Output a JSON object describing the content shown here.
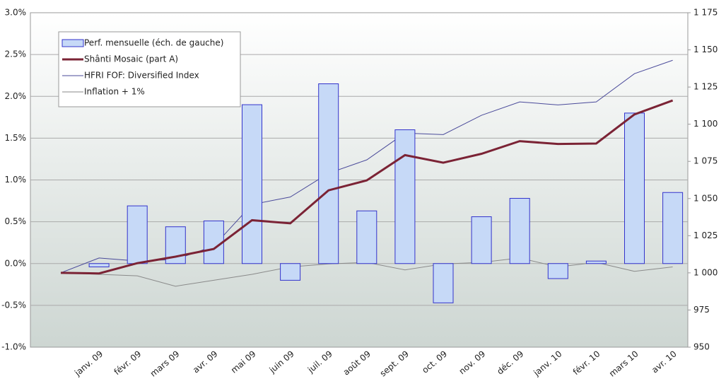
{
  "chart_data": {
    "type": "bar-line",
    "categories": [
      null,
      "janv. 09",
      "févr. 09",
      "mars 09",
      "avr. 09",
      "mai 09",
      "juin 09",
      "juil. 09",
      "août 09",
      "sept. 09",
      "oct. 09",
      "nov. 09",
      "déc. 09",
      "janv. 10",
      "févr. 10",
      "mars 10",
      "avr. 10"
    ],
    "series": [
      {
        "name": "Perf. mensuelle (éch. de gauche)",
        "type": "bar",
        "color": "#c6d9f7",
        "stroke": "#3333cc",
        "values": [
          null,
          -0.04,
          0.69,
          0.44,
          0.51,
          1.9,
          -0.2,
          2.15,
          0.63,
          1.6,
          -0.47,
          0.56,
          0.78,
          -0.18,
          0.03,
          1.8,
          0.85
        ]
      },
      {
        "name": "Shânti Mosaic (part A)",
        "type": "line",
        "axis": "y2",
        "color": "#7b2335",
        "width": 3,
        "values": [
          1000,
          999.6,
          1006.5,
          1010.9,
          1016.1,
          1035.4,
          1033.3,
          1055.5,
          1062.2,
          1079.2,
          1074.1,
          1080.1,
          1088.6,
          1086.7,
          1087.0,
          1106.6,
          1116.0
        ]
      },
      {
        "name": "HFRI FOF: Diversified Index",
        "type": "line",
        "axis": "y2",
        "color": "#4a4a9a",
        "width": 1,
        "values": [
          1000,
          1010,
          1008,
          1009,
          1018,
          1046,
          1051,
          1067,
          1076,
          1094,
          1093,
          1106,
          1115,
          1113,
          1115,
          1134,
          1143
        ]
      },
      {
        "name": "Inflation + 1%",
        "type": "line",
        "axis": "y2",
        "color": "#8a8a8a",
        "width": 1,
        "values": [
          1000,
          999,
          998,
          991,
          995,
          999,
          1004,
          1006,
          1007,
          1002,
          1006,
          1007,
          1010,
          1004,
          1007,
          1001,
          1004
        ]
      }
    ],
    "ylim": [
      -1,
      3
    ],
    "yticks": [
      {
        "value": -1,
        "label": "-1.0%"
      },
      {
        "value": -0.5,
        "label": "-0.5%"
      },
      {
        "value": 0,
        "label": "0.0%"
      },
      {
        "value": 0.5,
        "label": "0.5%"
      },
      {
        "value": 1,
        "label": "1.0%"
      },
      {
        "value": 1.5,
        "label": "1.5%"
      },
      {
        "value": 2,
        "label": "2.0%"
      },
      {
        "value": 2.5,
        "label": "2.5%"
      },
      {
        "value": 3,
        "label": "3.0%"
      }
    ],
    "y2lim": [
      950,
      1175
    ],
    "y2ticks": [
      950,
      975,
      {
        "value": 1000,
        "label": "1 000"
      },
      {
        "value": 1025,
        "label": "1 025"
      },
      {
        "value": 1050,
        "label": "1 050"
      },
      {
        "value": 1075,
        "label": "1 075"
      },
      {
        "value": 1100,
        "label": "1 100"
      },
      {
        "value": 1125,
        "label": "1 125"
      },
      {
        "value": 1150,
        "label": "1 150"
      },
      {
        "value": 1175,
        "label": "1 175"
      }
    ],
    "grid": true,
    "legend": "top-left"
  }
}
